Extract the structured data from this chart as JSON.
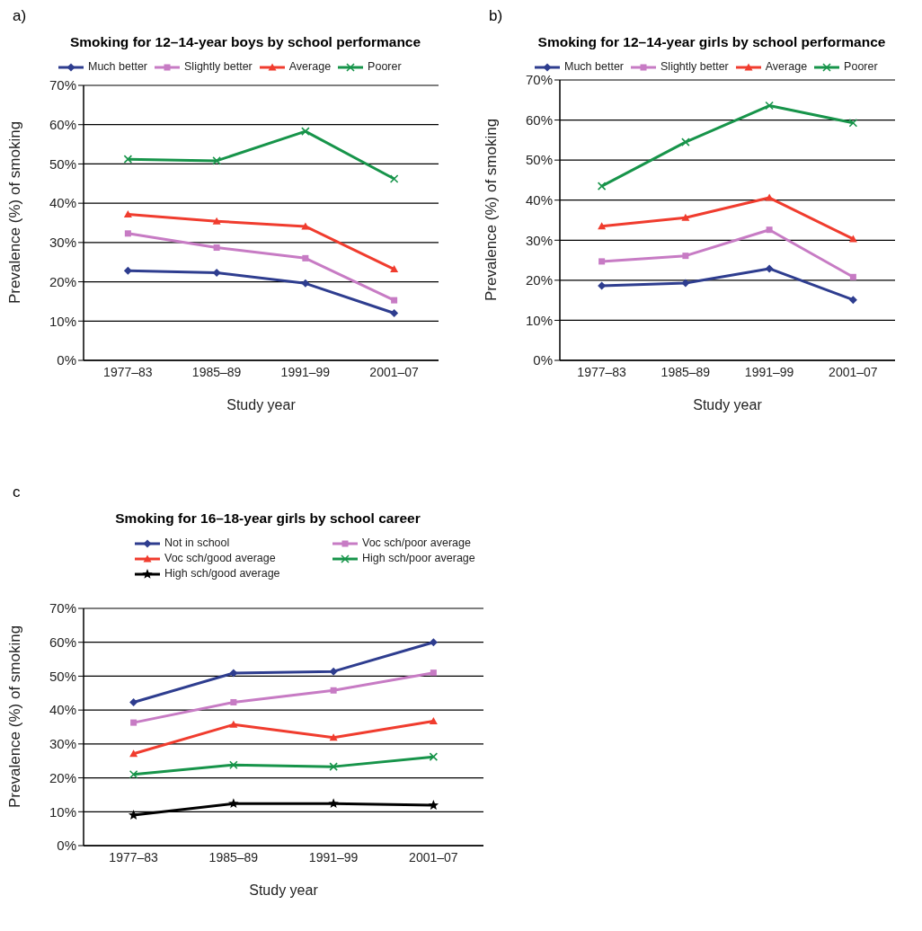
{
  "chart_data": [
    {
      "type": "line",
      "title": "Smoking for 12–14-year boys by school performance",
      "annotations": [
        "a)"
      ],
      "xlabel": "Study year",
      "ylabel": "Prevalence (%) of smoking",
      "categories": [
        "1977–83",
        "1985–89",
        "1991–99",
        "2001–07"
      ],
      "ylim": [
        0,
        70
      ],
      "yticks": [
        {
          "value": 0,
          "label": "0%"
        },
        {
          "value": 10,
          "label": "10%"
        },
        {
          "value": 20,
          "label": "20%"
        },
        {
          "value": 30,
          "label": "30%"
        },
        {
          "value": 40,
          "label": "40%"
        },
        {
          "value": 50,
          "label": "50%"
        },
        {
          "value": 60,
          "label": "60%"
        },
        {
          "value": 70,
          "label": "70%"
        }
      ],
      "grid": "y",
      "legend": "top",
      "series": [
        {
          "name": "Much better",
          "color": "#2e3d8f",
          "marker": "diamond",
          "values": [
            22.8,
            22.3,
            19.6,
            12.0
          ]
        },
        {
          "name": "Slightly better",
          "color": "#c77bc4",
          "marker": "square",
          "values": [
            32.3,
            28.7,
            26.0,
            15.3
          ]
        },
        {
          "name": "Average",
          "color": "#f03c2e",
          "marker": "triangle",
          "values": [
            37.2,
            35.4,
            34.1,
            23.2
          ]
        },
        {
          "name": "Poorer",
          "color": "#17944a",
          "marker": "cross",
          "values": [
            51.2,
            50.8,
            58.3,
            46.2
          ]
        }
      ]
    },
    {
      "type": "line",
      "title": "Smoking for 12–14-year girls by school performance",
      "annotations": [
        "b)"
      ],
      "xlabel": "Study year",
      "ylabel": "Prevalence (%) of smoking",
      "categories": [
        "1977–83",
        "1985–89",
        "1991–99",
        "2001–07"
      ],
      "ylim": [
        0,
        70
      ],
      "yticks": [
        {
          "value": 0,
          "label": "0%"
        },
        {
          "value": 10,
          "label": "10%"
        },
        {
          "value": 20,
          "label": "20%"
        },
        {
          "value": 30,
          "label": "30%"
        },
        {
          "value": 40,
          "label": "40%"
        },
        {
          "value": 50,
          "label": "50%"
        },
        {
          "value": 60,
          "label": "60%"
        },
        {
          "value": 70,
          "label": "70%"
        }
      ],
      "grid": "y",
      "legend": "top",
      "series": [
        {
          "name": "Much better",
          "color": "#2e3d8f",
          "marker": "diamond",
          "values": [
            18.6,
            19.3,
            22.9,
            15.1
          ]
        },
        {
          "name": "Slightly better",
          "color": "#c77bc4",
          "marker": "square",
          "values": [
            24.7,
            26.1,
            32.6,
            20.8
          ]
        },
        {
          "name": "Average",
          "color": "#f03c2e",
          "marker": "triangle",
          "values": [
            33.5,
            35.6,
            40.6,
            30.3
          ]
        },
        {
          "name": "Poorer",
          "color": "#17944a",
          "marker": "cross",
          "values": [
            43.5,
            54.5,
            63.6,
            59.3
          ]
        }
      ]
    },
    {
      "type": "line",
      "title": "Smoking for 16–18-year girls by school career",
      "annotations": [
        "c"
      ],
      "xlabel": "Study year",
      "ylabel": "Prevalence (%) of smoking",
      "categories": [
        "1977–83",
        "1985–89",
        "1991–99",
        "2001–07"
      ],
      "ylim": [
        0,
        70
      ],
      "yticks": [
        {
          "value": 0,
          "label": "0%"
        },
        {
          "value": 10,
          "label": "10%"
        },
        {
          "value": 20,
          "label": "20%"
        },
        {
          "value": 30,
          "label": "30%"
        },
        {
          "value": 40,
          "label": "40%"
        },
        {
          "value": 50,
          "label": "50%"
        },
        {
          "value": 60,
          "label": "60%"
        },
        {
          "value": 70,
          "label": "70%"
        }
      ],
      "grid": "y",
      "legend": "top",
      "series": [
        {
          "name": "Not in school",
          "color": "#2e3d8f",
          "marker": "diamond",
          "values": [
            42.3,
            50.9,
            51.4,
            60.0
          ]
        },
        {
          "name": "Voc sch/poor average",
          "color": "#c77bc4",
          "marker": "square",
          "values": [
            36.3,
            42.3,
            45.8,
            51.0
          ]
        },
        {
          "name": "Voc sch/good average",
          "color": "#f03c2e",
          "marker": "triangle",
          "values": [
            27.1,
            35.7,
            31.9,
            36.7
          ]
        },
        {
          "name": "High sch/poor average",
          "color": "#17944a",
          "marker": "cross",
          "values": [
            21.0,
            23.8,
            23.3,
            26.2
          ]
        },
        {
          "name": "High sch/good average",
          "color": "#000000",
          "marker": "star",
          "values": [
            9.0,
            12.4,
            12.4,
            11.9
          ]
        }
      ]
    }
  ]
}
